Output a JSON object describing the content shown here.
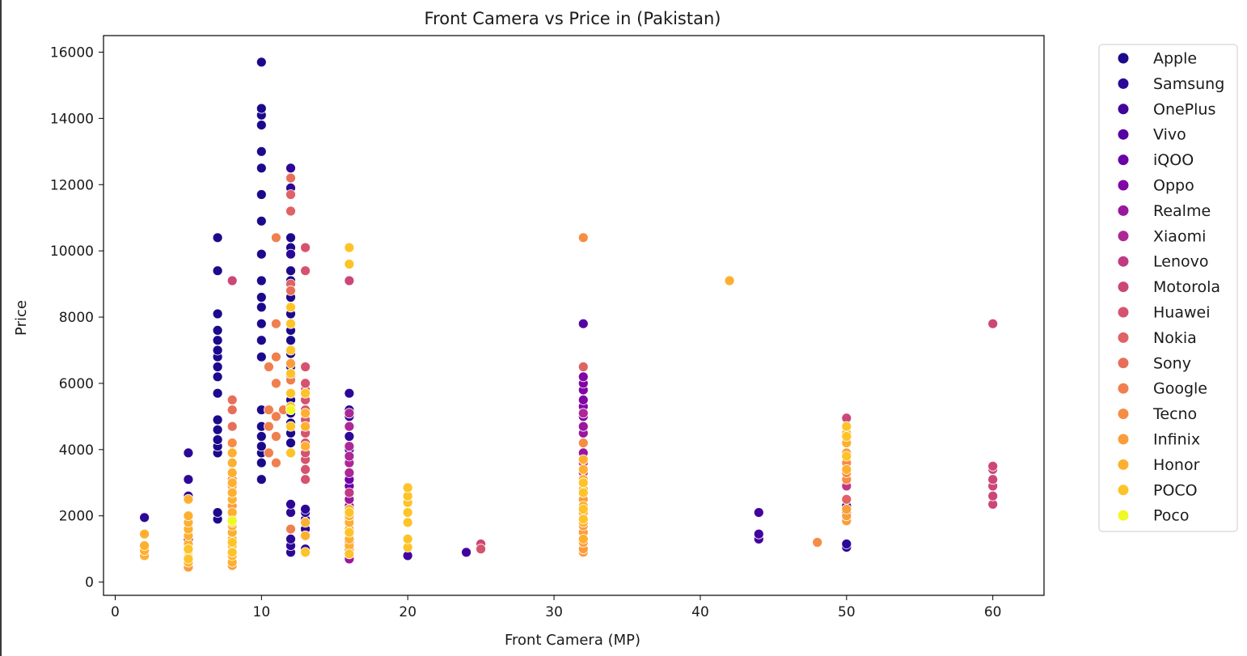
{
  "chart_data": {
    "type": "scatter",
    "title": "Front Camera vs Price in (Pakistan)",
    "xlabel": "Front Camera (MP)",
    "ylabel": "Price",
    "xlim": [
      -0.8,
      63.5
    ],
    "ylim": [
      -400,
      16500
    ],
    "x_ticks": [
      0,
      10,
      20,
      30,
      40,
      50,
      60
    ],
    "y_ticks": [
      0,
      2000,
      4000,
      6000,
      8000,
      10000,
      12000,
      14000,
      16000
    ],
    "grid": false,
    "legend_position": "outside-top-right",
    "series": [
      {
        "name": "Apple",
        "color": "#1c0a8c",
        "points": [
          [
            7,
            1900
          ],
          [
            7,
            2100
          ],
          [
            7,
            3900
          ],
          [
            7,
            4100
          ],
          [
            7,
            4300
          ],
          [
            7,
            4600
          ],
          [
            7,
            4900
          ],
          [
            7,
            5700
          ],
          [
            7,
            6200
          ],
          [
            7,
            6500
          ],
          [
            7,
            6800
          ],
          [
            7,
            7000
          ],
          [
            7,
            7300
          ],
          [
            7,
            7600
          ],
          [
            7,
            8100
          ],
          [
            7,
            9400
          ],
          [
            7,
            10400
          ],
          [
            10,
            3100
          ],
          [
            10,
            3600
          ],
          [
            10,
            3900
          ],
          [
            10,
            4100
          ],
          [
            10,
            4400
          ],
          [
            10,
            4700
          ],
          [
            10,
            5200
          ],
          [
            10,
            6800
          ],
          [
            10,
            7300
          ],
          [
            10,
            7800
          ],
          [
            10,
            8300
          ],
          [
            10,
            8600
          ],
          [
            10,
            9100
          ],
          [
            10,
            9900
          ],
          [
            10,
            10900
          ],
          [
            10,
            11700
          ],
          [
            10,
            12500
          ],
          [
            10,
            13000
          ],
          [
            10,
            13800
          ],
          [
            10,
            14100
          ],
          [
            10,
            14300
          ],
          [
            10,
            15700
          ],
          [
            12,
            4200
          ],
          [
            12,
            4500
          ],
          [
            12,
            4800
          ],
          [
            12,
            5100
          ],
          [
            12,
            5500
          ],
          [
            12,
            6200
          ],
          [
            12,
            6500
          ],
          [
            12,
            6900
          ],
          [
            12,
            7300
          ],
          [
            12,
            7600
          ],
          [
            12,
            8100
          ],
          [
            12,
            8600
          ],
          [
            12,
            9100
          ],
          [
            12,
            9400
          ],
          [
            12,
            10100
          ],
          [
            12,
            10400
          ]
        ]
      },
      {
        "name": "Samsung",
        "color": "#2d0896",
        "points": [
          [
            2,
            1950
          ],
          [
            5,
            2600
          ],
          [
            5,
            3100
          ],
          [
            5,
            3900
          ],
          [
            12,
            900
          ],
          [
            12,
            1100
          ],
          [
            12,
            1300
          ],
          [
            12,
            2100
          ],
          [
            12,
            2350
          ],
          [
            12,
            9900
          ],
          [
            12,
            11900
          ],
          [
            12,
            12500
          ],
          [
            13,
            1000
          ],
          [
            13,
            1600
          ],
          [
            13,
            1900
          ],
          [
            13,
            2100
          ],
          [
            13,
            2200
          ],
          [
            16,
            4000
          ],
          [
            16,
            4400
          ],
          [
            16,
            5000
          ],
          [
            16,
            5200
          ],
          [
            16,
            5700
          ],
          [
            50,
            1050
          ],
          [
            50,
            1150
          ],
          [
            50,
            2100
          ],
          [
            50,
            2300
          ],
          [
            50,
            2500
          ]
        ]
      },
      {
        "name": "OnePlus",
        "color": "#42039d",
        "points": [
          [
            20,
            800
          ],
          [
            24,
            900
          ],
          [
            44,
            1300
          ],
          [
            44,
            1450
          ],
          [
            44,
            2100
          ]
        ]
      },
      {
        "name": "Vivo",
        "color": "#5502a3",
        "points": [
          [
            32,
            7800
          ],
          [
            5,
            1300
          ]
        ]
      },
      {
        "name": "iQOO",
        "color": "#6a00a8",
        "points": [
          [
            16,
            2900
          ],
          [
            16,
            3100
          ]
        ]
      },
      {
        "name": "Oppo",
        "color": "#8205a5",
        "points": [
          [
            16,
            1500
          ],
          [
            16,
            2300
          ],
          [
            32,
            5000
          ],
          [
            32,
            5300
          ],
          [
            32,
            5500
          ],
          [
            32,
            5800
          ],
          [
            32,
            6000
          ],
          [
            32,
            6200
          ]
        ]
      },
      {
        "name": "Realme",
        "color": "#9a169f",
        "points": [
          [
            16,
            700
          ],
          [
            16,
            1200
          ],
          [
            16,
            2500
          ],
          [
            32,
            3900
          ],
          [
            32,
            4200
          ],
          [
            32,
            4500
          ],
          [
            32,
            4700
          ]
        ]
      },
      {
        "name": "Xiaomi",
        "color": "#ad2896",
        "points": [
          [
            16,
            3300
          ],
          [
            16,
            3600
          ],
          [
            16,
            3800
          ],
          [
            16,
            4100
          ],
          [
            16,
            4700
          ],
          [
            16,
            5100
          ],
          [
            32,
            5100
          ]
        ]
      },
      {
        "name": "Lenovo",
        "color": "#c03a83",
        "points": [
          [
            16,
            1900
          ],
          [
            16,
            2700
          ],
          [
            32,
            3300
          ],
          [
            32,
            3600
          ],
          [
            50,
            2900
          ]
        ]
      },
      {
        "name": "Motorola",
        "color": "#cc4778",
        "points": [
          [
            8,
            9100
          ],
          [
            16,
            9100
          ],
          [
            25,
            1150
          ],
          [
            50,
            4950
          ],
          [
            60,
            2350
          ],
          [
            60,
            2600
          ],
          [
            60,
            2900
          ],
          [
            60,
            3100
          ],
          [
            60,
            3400
          ],
          [
            60,
            3500
          ],
          [
            60,
            7800
          ]
        ]
      },
      {
        "name": "Huawei",
        "color": "#d5536f",
        "points": [
          [
            13,
            3100
          ],
          [
            13,
            3400
          ],
          [
            13,
            3700
          ],
          [
            13,
            3900
          ],
          [
            13,
            4200
          ],
          [
            13,
            4500
          ],
          [
            13,
            4900
          ],
          [
            13,
            5200
          ],
          [
            13,
            5500
          ],
          [
            13,
            5800
          ],
          [
            13,
            6000
          ],
          [
            13,
            6500
          ],
          [
            13,
            9400
          ],
          [
            13,
            10100
          ],
          [
            25,
            1000
          ]
        ]
      },
      {
        "name": "Nokia",
        "color": "#df6264",
        "points": [
          [
            12,
            9000
          ],
          [
            12,
            11200
          ],
          [
            12,
            11700
          ],
          [
            32,
            6500
          ],
          [
            50,
            2500
          ]
        ]
      },
      {
        "name": "Sony",
        "color": "#e76f5a",
        "points": [
          [
            8,
            4700
          ],
          [
            8,
            5200
          ],
          [
            8,
            5500
          ],
          [
            12,
            12200
          ],
          [
            12,
            8800
          ],
          [
            16,
            1000
          ]
        ]
      },
      {
        "name": "Google",
        "color": "#f07f4f",
        "points": [
          [
            10.5,
            3900
          ],
          [
            10.5,
            4700
          ],
          [
            10.5,
            5200
          ],
          [
            10.5,
            6500
          ],
          [
            11,
            3600
          ],
          [
            11,
            4400
          ],
          [
            11,
            5000
          ],
          [
            11,
            6000
          ],
          [
            11,
            6800
          ],
          [
            11,
            7800
          ],
          [
            11,
            10400
          ],
          [
            11.5,
            5200
          ],
          [
            12,
            1600
          ],
          [
            12,
            6100
          ]
        ]
      },
      {
        "name": "Tecno",
        "color": "#f68d45",
        "points": [
          [
            8,
            4200
          ],
          [
            8,
            3100
          ],
          [
            32,
            10400
          ],
          [
            32,
            4200
          ],
          [
            48,
            1200
          ],
          [
            50,
            3100
          ],
          [
            50,
            3300
          ],
          [
            50,
            3600
          ]
        ]
      },
      {
        "name": "Infinix",
        "color": "#fa9e3b",
        "points": [
          [
            5,
            450
          ],
          [
            8,
            500
          ],
          [
            8,
            2300
          ],
          [
            8,
            2900
          ],
          [
            12,
            6600
          ],
          [
            32,
            900
          ],
          [
            32,
            1000
          ],
          [
            32,
            1200
          ],
          [
            32,
            1500
          ],
          [
            32,
            1700
          ],
          [
            32,
            2100
          ],
          [
            32,
            2500
          ],
          [
            50,
            1850
          ],
          [
            50,
            2000
          ],
          [
            50,
            2200
          ],
          [
            50,
            3900
          ]
        ]
      },
      {
        "name": "Honor",
        "color": "#fdb030",
        "points": [
          [
            2,
            800
          ],
          [
            2,
            950
          ],
          [
            2,
            1100
          ],
          [
            2,
            1450
          ],
          [
            5,
            600
          ],
          [
            5,
            750
          ],
          [
            5,
            950
          ],
          [
            5,
            1150
          ],
          [
            5,
            1400
          ],
          [
            5,
            1600
          ],
          [
            5,
            1800
          ],
          [
            5,
            2000
          ],
          [
            5,
            2500
          ],
          [
            8,
            600
          ],
          [
            8,
            800
          ],
          [
            8,
            1100
          ],
          [
            8,
            1300
          ],
          [
            8,
            1500
          ],
          [
            8,
            1700
          ],
          [
            8,
            1900
          ],
          [
            8,
            2100
          ],
          [
            8,
            2500
          ],
          [
            8,
            2700
          ],
          [
            8,
            3000
          ],
          [
            8,
            3300
          ],
          [
            8,
            3600
          ],
          [
            8,
            3900
          ],
          [
            13,
            1400
          ],
          [
            13,
            1800
          ],
          [
            13,
            4100
          ],
          [
            13,
            4700
          ],
          [
            13,
            5100
          ],
          [
            16,
            1100
          ],
          [
            16,
            1300
          ],
          [
            16,
            1600
          ],
          [
            16,
            1800
          ],
          [
            16,
            2000
          ],
          [
            16,
            2200
          ],
          [
            32,
            1300
          ],
          [
            32,
            1800
          ],
          [
            32,
            2300
          ],
          [
            32,
            2800
          ],
          [
            32,
            3100
          ],
          [
            32,
            3400
          ],
          [
            32,
            3700
          ],
          [
            42,
            9100
          ],
          [
            50,
            3400
          ],
          [
            50,
            4200
          ],
          [
            50,
            4500
          ]
        ]
      },
      {
        "name": "POCO",
        "color": "#fdc328",
        "points": [
          [
            5,
            700
          ],
          [
            5,
            1000
          ],
          [
            8,
            900
          ],
          [
            8,
            1200
          ],
          [
            8,
            1800
          ],
          [
            12,
            3900
          ],
          [
            12,
            4700
          ],
          [
            12,
            5300
          ],
          [
            12,
            5700
          ],
          [
            12,
            6300
          ],
          [
            12,
            7000
          ],
          [
            12,
            7800
          ],
          [
            12,
            8300
          ],
          [
            13,
            900
          ],
          [
            13,
            5700
          ],
          [
            16,
            850
          ],
          [
            16,
            1500
          ],
          [
            16,
            2100
          ],
          [
            16,
            9600
          ],
          [
            16,
            10100
          ],
          [
            20,
            1050
          ],
          [
            20,
            1300
          ],
          [
            20,
            1800
          ],
          [
            20,
            2100
          ],
          [
            20,
            2400
          ],
          [
            20,
            2600
          ],
          [
            20,
            2850
          ],
          [
            32,
            1900
          ],
          [
            32,
            2200
          ],
          [
            32,
            2700
          ],
          [
            32,
            3000
          ],
          [
            50,
            3800
          ],
          [
            50,
            4400
          ],
          [
            50,
            4700
          ]
        ]
      },
      {
        "name": "Poco",
        "color": "#f0f921",
        "points": [
          [
            8,
            1850
          ],
          [
            12,
            5200
          ]
        ]
      }
    ]
  }
}
